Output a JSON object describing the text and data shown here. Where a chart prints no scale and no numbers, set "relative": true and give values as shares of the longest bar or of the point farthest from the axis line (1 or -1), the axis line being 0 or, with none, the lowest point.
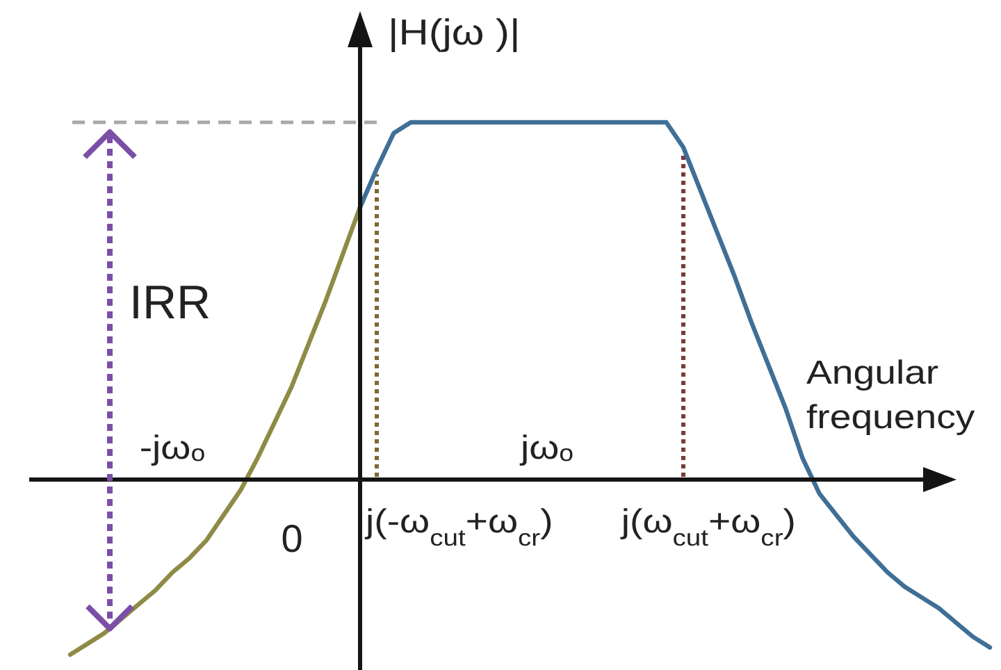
{
  "chart_data": {
    "type": "line",
    "relative": true,
    "xlabel": "Angular frequency",
    "ylabel": "|H(jω )|",
    "categories": [
      null,
      null,
      null,
      null,
      null,
      null,
      null,
      null,
      "-jωₒ",
      null,
      null,
      null,
      null,
      null,
      null,
      null,
      null,
      null,
      null,
      null,
      null,
      null,
      null,
      null,
      null,
      null,
      null,
      null,
      null,
      null,
      "jωₒ",
      null,
      null,
      null,
      null,
      null,
      null,
      null,
      null,
      null,
      null,
      null,
      null,
      null,
      null,
      null,
      null,
      null,
      null,
      null,
      null,
      null,
      null,
      null,
      null,
      null,
      null
    ],
    "series": [
      {
        "color": "#8f8a45",
        "values": [
          null,
          null,
          -0.49,
          -0.46,
          -0.43,
          -0.39,
          -0.35,
          -0.31,
          -0.26,
          -0.22,
          -0.17,
          -0.1,
          -0.03,
          0.06,
          0.16,
          0.26,
          0.38,
          0.5,
          0.63,
          0.76,
          null,
          null,
          null,
          null,
          null,
          null,
          null,
          null,
          null,
          null,
          null,
          null,
          null,
          null,
          null,
          null,
          null,
          null,
          null,
          null,
          null,
          null,
          null,
          null,
          null,
          null,
          null,
          null,
          null,
          null,
          null,
          null,
          null,
          null,
          null,
          null,
          null
        ]
      },
      {
        "color": "#3f6f96",
        "values": [
          null,
          null,
          null,
          null,
          null,
          null,
          null,
          null,
          null,
          null,
          null,
          null,
          null,
          null,
          null,
          null,
          null,
          null,
          null,
          0.76,
          0.87,
          0.97,
          1,
          1,
          1,
          1,
          1,
          1,
          1,
          1,
          1,
          1,
          1,
          1,
          1,
          1,
          1,
          1,
          0.93,
          0.81,
          0.69,
          0.57,
          0.44,
          0.32,
          0.2,
          0.06,
          -0.04,
          -0.1,
          -0.16,
          -0.21,
          -0.26,
          -0.3,
          -0.33,
          -0.36,
          -0.4,
          -0.44,
          -0.47
        ]
      }
    ],
    "ref_lines": [
      {
        "axis": "y",
        "value": 1,
        "color": "#a8a8a8",
        "line_style": "dashed"
      }
    ],
    "annotations": [
      "0",
      "IRR",
      "j(-ω$_{cut}$+ω$_{cr}$)",
      "j(ω$_{cut}$+ω$_{cr}$)"
    ]
  }
}
